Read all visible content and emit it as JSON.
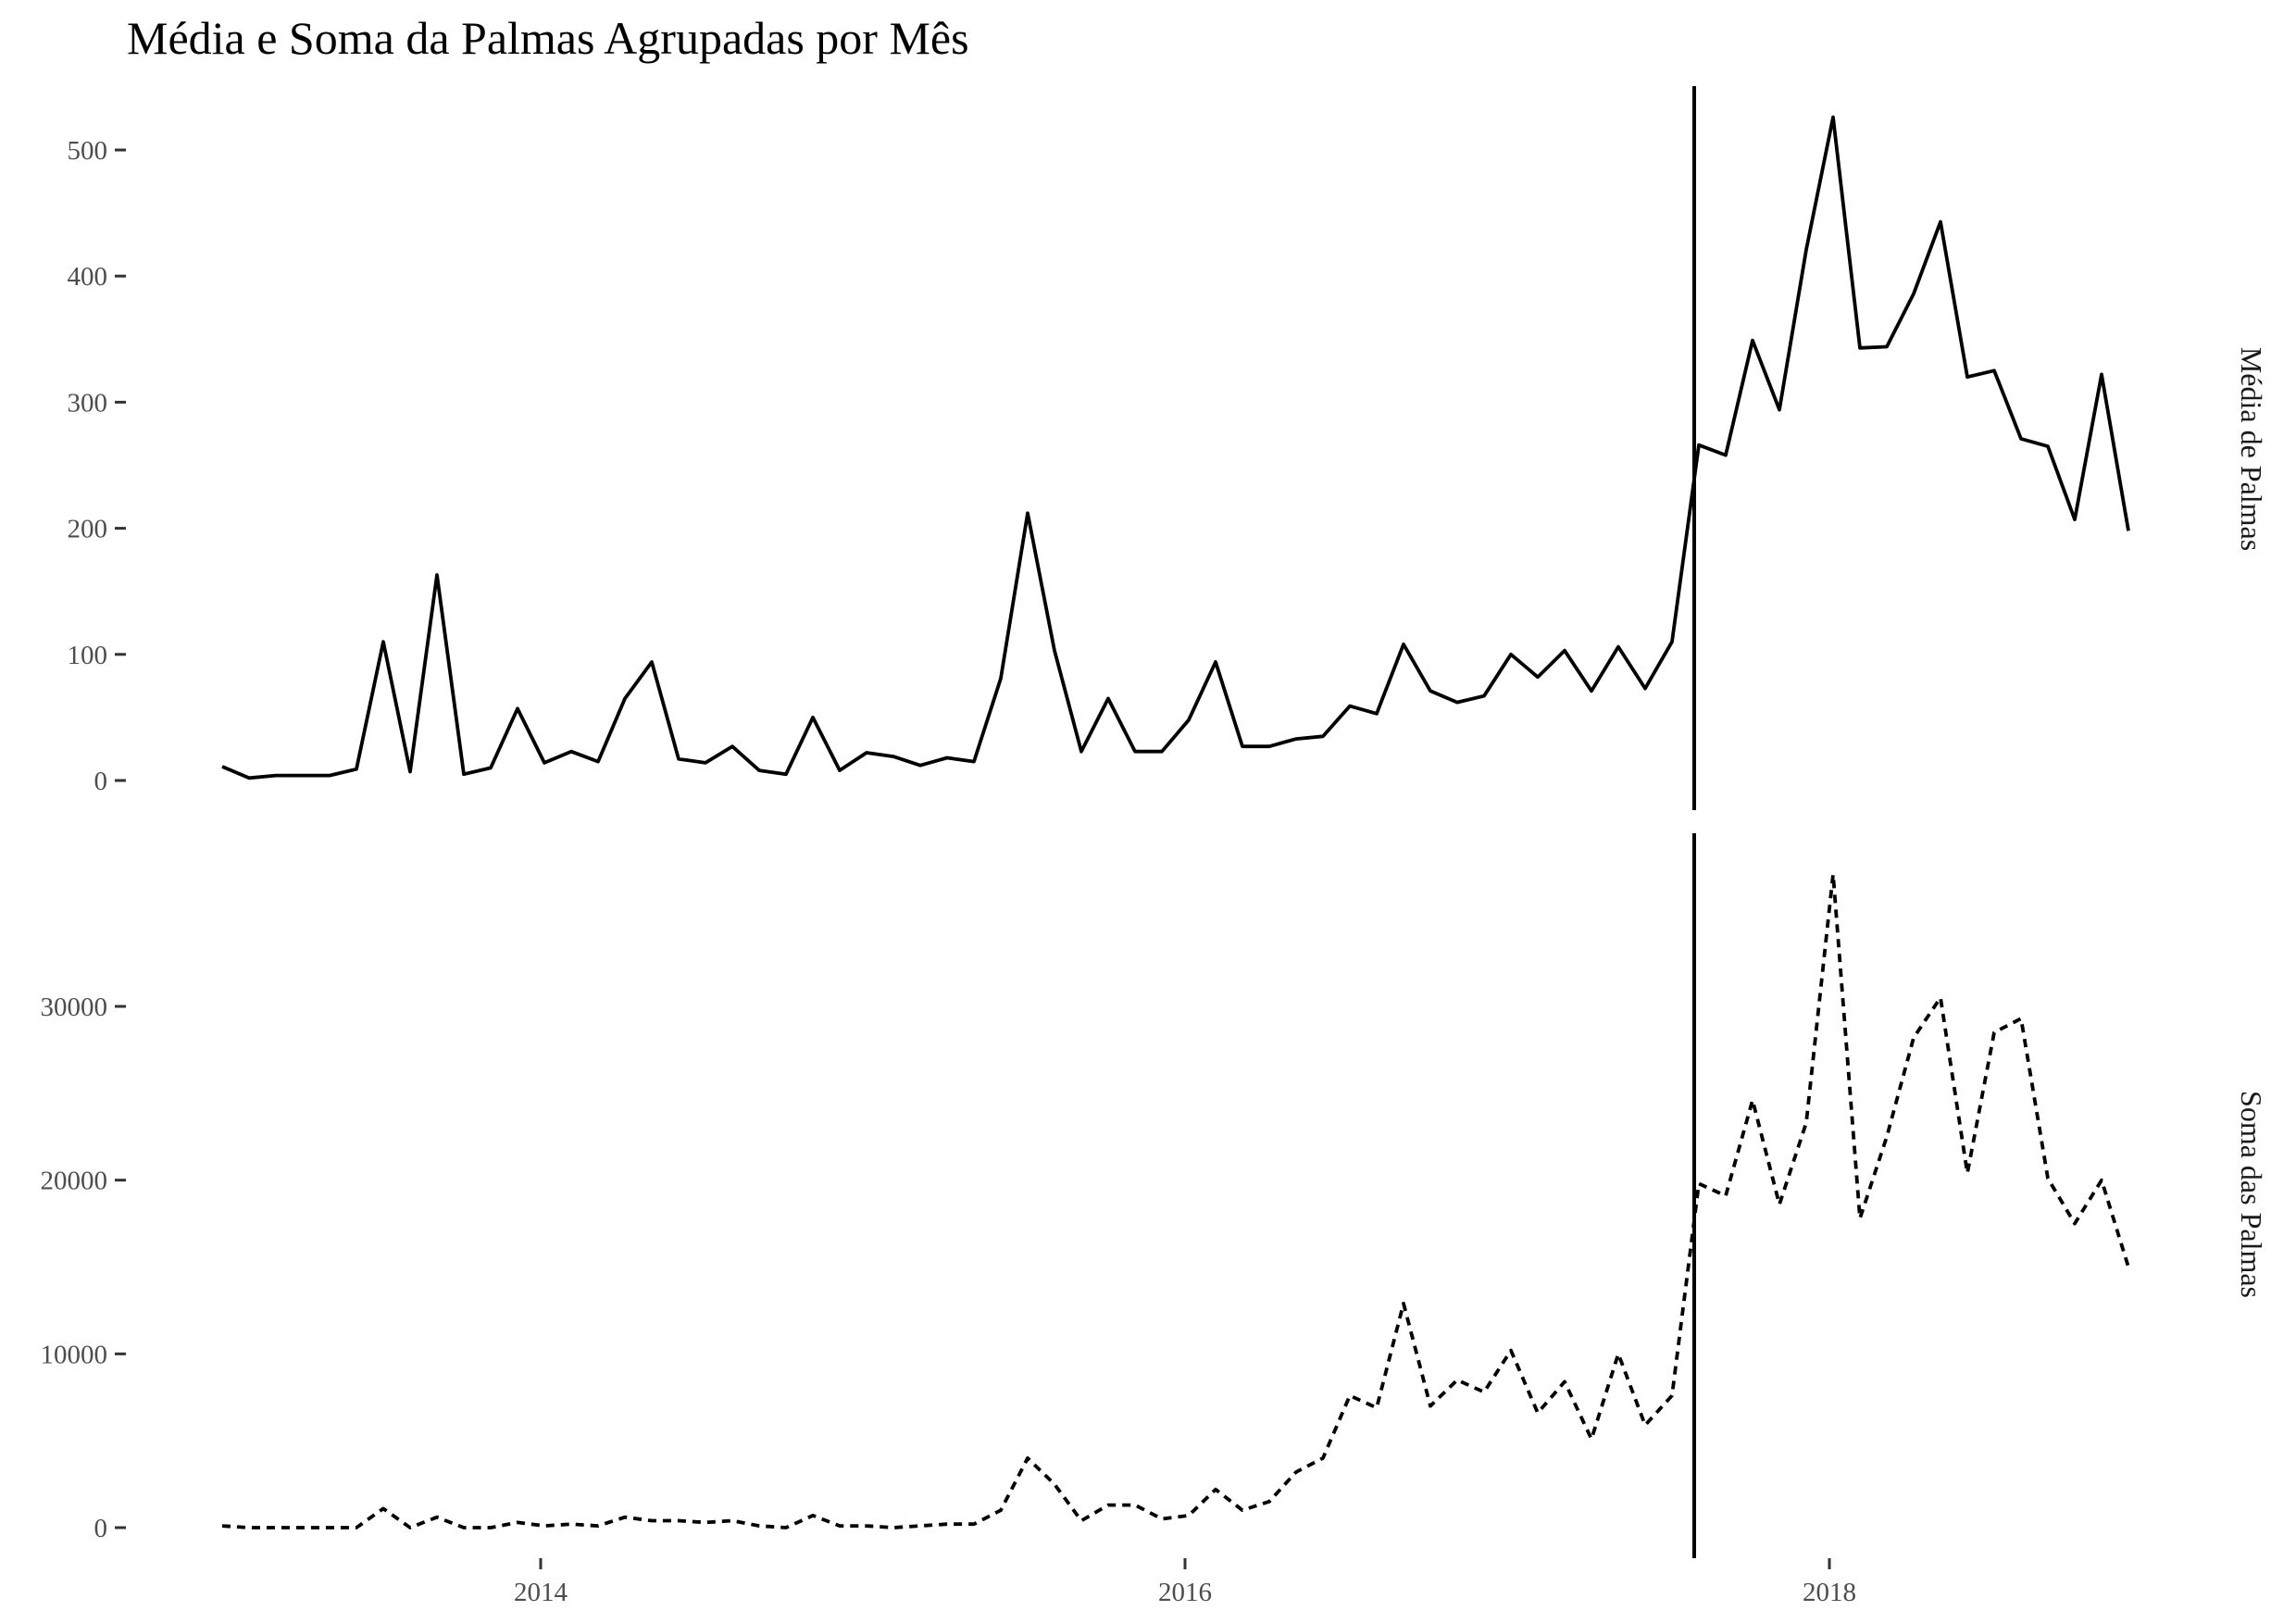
{
  "chart_data": {
    "type": "line",
    "title": "Média e Soma da Palmas Agrupadas por Mês",
    "x_start": "2013-01",
    "x_frequency": "monthly",
    "x_ticks": [
      {
        "date": "2014-01",
        "label": "2014"
      },
      {
        "date": "2016-01",
        "label": "2016"
      },
      {
        "date": "2018-01",
        "label": "2018"
      }
    ],
    "vline_date": "2017-08",
    "colors": {
      "line": "#000000",
      "text": "#4d4d4d",
      "background": "#ffffff"
    },
    "panels": [
      {
        "strip_label": "Média de Palmas",
        "linetype": "solid",
        "ylim": [
          0,
          550
        ],
        "y_ticks": [
          0,
          100,
          200,
          300,
          400,
          500
        ],
        "values": [
          11,
          2,
          4,
          4,
          4,
          9,
          110,
          7,
          163,
          5,
          10,
          57,
          14,
          23,
          15,
          65,
          94,
          17,
          14,
          27,
          8,
          5,
          50,
          8,
          22,
          19,
          12,
          18,
          15,
          81,
          212,
          103,
          23,
          65,
          23,
          23,
          48,
          94,
          27,
          27,
          33,
          35,
          59,
          53,
          108,
          71,
          62,
          67,
          100,
          82,
          103,
          71,
          106,
          73,
          110,
          266,
          258,
          349,
          294,
          421,
          526,
          343,
          344,
          386,
          443,
          320,
          325,
          271,
          265,
          207,
          322,
          198
        ]
      },
      {
        "strip_label": "Soma das Palmas",
        "linetype": "dashed",
        "ylim": [
          0,
          38000
        ],
        "y_ticks": [
          0,
          10000,
          20000,
          30000
        ],
        "values": [
          100,
          0,
          0,
          0,
          0,
          0,
          1100,
          0,
          600,
          0,
          0,
          300,
          100,
          200,
          100,
          600,
          400,
          400,
          300,
          400,
          100,
          0,
          700,
          100,
          100,
          0,
          100,
          200,
          200,
          1000,
          4000,
          2500,
          400,
          1300,
          1300,
          500,
          700,
          2200,
          1000,
          1500,
          3200,
          4000,
          7600,
          6900,
          12900,
          7000,
          8500,
          7800,
          10200,
          6600,
          8400,
          5100,
          10000,
          5900,
          7600,
          19800,
          19100,
          24600,
          18600,
          23300,
          37600,
          17800,
          22500,
          28200,
          30500,
          20400,
          28500,
          29300,
          20100,
          17500,
          20000,
          15000
        ]
      }
    ]
  }
}
